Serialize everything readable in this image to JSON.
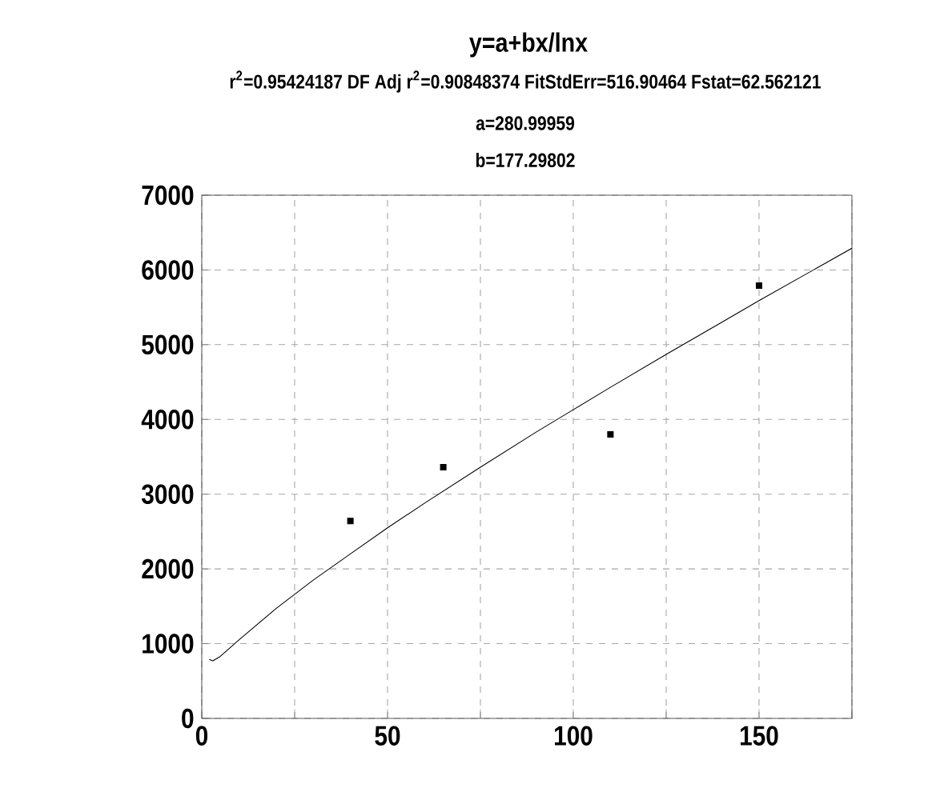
{
  "chart_data": {
    "type": "scatter",
    "title": "y=a+bx/lnx",
    "subtitle": "r$^{2}$=0.95424187  DF Adj r$^{2}$=0.90848374  FitStdErr=516.90464  Fstat=62.562121",
    "annotations": [
      "a=280.99959",
      "b=177.29802"
    ],
    "series": [
      {
        "marker": "square",
        "color": "#000000",
        "x": [
          40,
          65,
          110,
          150
        ],
        "values": [
          2640,
          3360,
          3800,
          5790
        ]
      },
      {
        "type": "line",
        "marker": "none",
        "color": "#000000",
        "x": [
          2,
          3,
          5,
          10,
          20,
          30,
          40,
          50,
          60,
          75,
          90,
          100,
          110,
          125,
          140,
          150,
          160,
          175
        ],
        "values": [
          790,
          770,
          830,
          1050,
          1470,
          1850,
          2200,
          2550,
          2880,
          3360,
          3830,
          4130,
          4430,
          4870,
          5300,
          5590,
          5870,
          6290
        ]
      }
    ],
    "xlim": [
      0,
      175
    ],
    "ylim": [
      0,
      7000
    ],
    "xticks": [
      0,
      {
        "value": 25,
        "label": null
      },
      50,
      {
        "value": 75,
        "label": null
      },
      100,
      {
        "value": 125,
        "label": null
      },
      150,
      {
        "value": 175,
        "label": null
      }
    ],
    "yticks": [
      0,
      1000,
      2000,
      3000,
      4000,
      5000,
      6000,
      7000
    ],
    "grid": true
  }
}
